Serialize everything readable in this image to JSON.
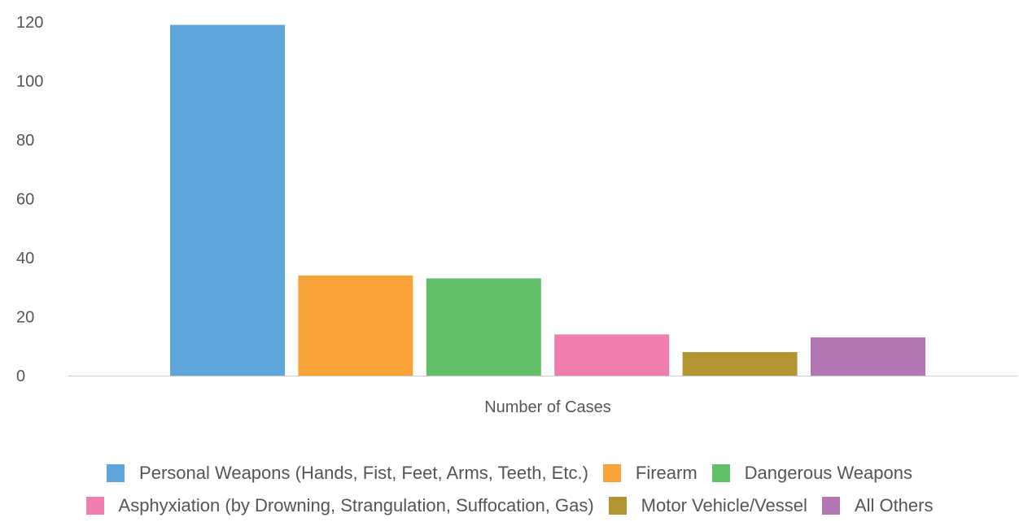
{
  "chart_data": {
    "type": "bar",
    "xlabel": "Number of Cases",
    "ylabel": "",
    "ylim": [
      0,
      120
    ],
    "yticks": [
      0,
      20,
      40,
      60,
      80,
      100,
      120
    ],
    "grid": false,
    "legend_position": "bottom",
    "series": [
      {
        "name": "Personal Weapons (Hands, Fist, Feet, Arms, Teeth, Etc.)",
        "value": 119,
        "color": "#5ea6dc"
      },
      {
        "name": "Firearm",
        "value": 34,
        "color": "#f9a23a"
      },
      {
        "name": "Dangerous Weapons",
        "value": 33,
        "color": "#63bf6a"
      },
      {
        "name": "Asphyxiation (by Drowning, Strangulation, Suffocation, Gas)",
        "value": 14,
        "color": "#ef7eae"
      },
      {
        "name": "Motor Vehicle/Vessel",
        "value": 8,
        "color": "#b39432"
      },
      {
        "name": "All Others",
        "value": 13,
        "color": "#b277b3"
      }
    ]
  }
}
